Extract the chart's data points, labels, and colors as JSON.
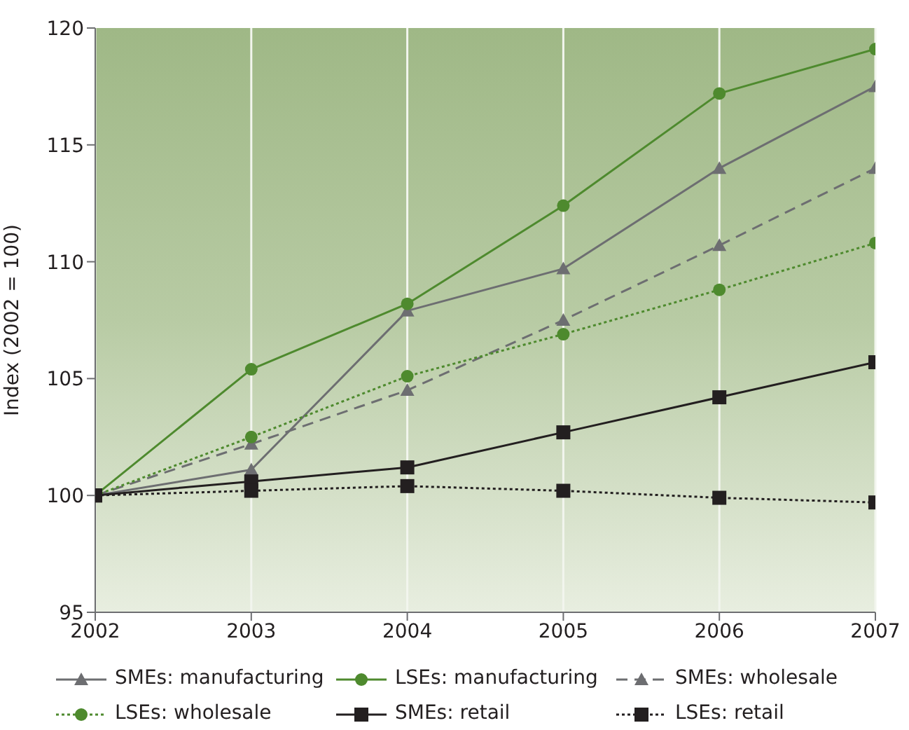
{
  "chart_data": {
    "type": "line",
    "ylabel": "Index (2002 = 100)",
    "x": [
      2002,
      2003,
      2004,
      2005,
      2006,
      2007
    ],
    "xlim": [
      2002,
      2007
    ],
    "xticks": [
      2002,
      2003,
      2004,
      2005,
      2006,
      2007
    ],
    "ylim": [
      95,
      120
    ],
    "yticks": [
      95,
      100,
      105,
      110,
      115,
      120
    ],
    "grid": "x",
    "legend": "bottom",
    "series": [
      {
        "name": "SMEs: manufacturing",
        "color": "#6d6e71",
        "marker": "triangle",
        "line_style": "solid",
        "values": [
          100,
          101.1,
          107.9,
          109.7,
          114.0,
          117.5
        ]
      },
      {
        "name": "LSEs: manufacturing",
        "color": "#4e8a2e",
        "marker": "circle",
        "line_style": "solid",
        "values": [
          100,
          105.4,
          108.2,
          112.4,
          117.2,
          119.1
        ]
      },
      {
        "name": "SMEs: wholesale",
        "color": "#6d6e71",
        "marker": "triangle",
        "line_style": "dashed",
        "values": [
          100,
          102.2,
          104.5,
          107.5,
          110.7,
          114.0
        ]
      },
      {
        "name": "LSEs: wholesale",
        "color": "#4e8a2e",
        "marker": "circle",
        "line_style": "dotted",
        "values": [
          100,
          102.5,
          105.1,
          106.9,
          108.8,
          110.8
        ]
      },
      {
        "name": "SMEs: retail",
        "color": "#231f20",
        "marker": "square",
        "line_style": "solid",
        "values": [
          100,
          100.6,
          101.2,
          102.7,
          104.2,
          105.7
        ]
      },
      {
        "name": "LSEs: retail",
        "color": "#231f20",
        "marker": "square",
        "line_style": "dotted",
        "values": [
          100,
          100.2,
          100.4,
          100.2,
          99.9,
          99.7
        ]
      }
    ]
  }
}
